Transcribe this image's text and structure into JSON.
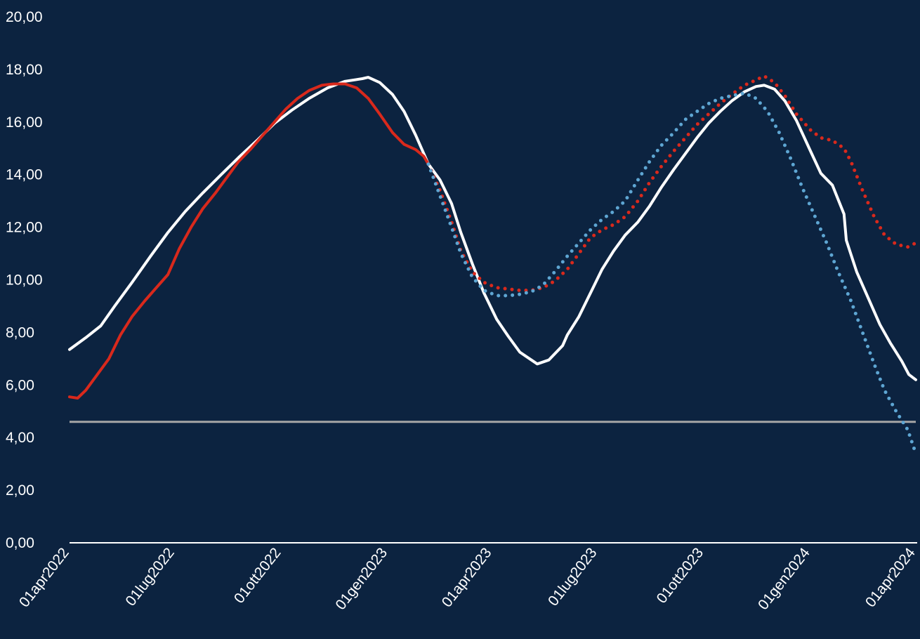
{
  "chart_data": {
    "type": "line",
    "title": "",
    "xlabel": "",
    "ylabel": "",
    "ylim": [
      0,
      20
    ],
    "y_ticks": [
      "0,00",
      "2,00",
      "4,00",
      "6,00",
      "8,00",
      "10,00",
      "12,00",
      "14,00",
      "16,00",
      "18,00",
      "20,00"
    ],
    "x_range": [
      "2022-04-01",
      "2024-04-01"
    ],
    "x_ticks": [
      {
        "date": "2022-04-01",
        "label": "01apr2022"
      },
      {
        "date": "2022-07-01",
        "label": "01lug2022"
      },
      {
        "date": "2022-10-01",
        "label": "01ott2022"
      },
      {
        "date": "2023-01-01",
        "label": "01gen2023"
      },
      {
        "date": "2023-04-01",
        "label": "01apr2023"
      },
      {
        "date": "2023-07-01",
        "label": "01lug2023"
      },
      {
        "date": "2023-10-01",
        "label": "01ott2023"
      },
      {
        "date": "2024-01-01",
        "label": "01gen2024"
      },
      {
        "date": "2024-04-01",
        "label": "01apr2024"
      }
    ],
    "grid": false,
    "legend": "none",
    "reference_line": {
      "y": 4.6,
      "color": "#a6a6a6"
    },
    "series": [
      {
        "color": "#ffffff",
        "style": "solid",
        "points": [
          [
            "2022-04-01",
            7.35
          ],
          [
            "2022-04-15",
            7.8
          ],
          [
            "2022-04-28",
            8.25
          ],
          [
            "2022-05-10",
            9.0
          ],
          [
            "2022-05-25",
            9.9
          ],
          [
            "2022-06-10",
            10.9
          ],
          [
            "2022-06-25",
            11.8
          ],
          [
            "2022-07-10",
            12.6
          ],
          [
            "2022-07-25",
            13.3
          ],
          [
            "2022-08-10",
            14.0
          ],
          [
            "2022-08-25",
            14.65
          ],
          [
            "2022-09-10",
            15.3
          ],
          [
            "2022-09-25",
            15.95
          ],
          [
            "2022-10-10",
            16.45
          ],
          [
            "2022-10-25",
            16.9
          ],
          [
            "2022-11-10",
            17.3
          ],
          [
            "2022-11-25",
            17.55
          ],
          [
            "2022-12-10",
            17.65
          ],
          [
            "2022-12-15",
            17.7
          ],
          [
            "2022-12-25",
            17.5
          ],
          [
            "2023-01-05",
            17.05
          ],
          [
            "2023-01-15",
            16.4
          ],
          [
            "2023-01-25",
            15.5
          ],
          [
            "2023-02-05",
            14.4
          ],
          [
            "2023-02-15",
            13.8
          ],
          [
            "2023-02-25",
            12.9
          ],
          [
            "2023-03-05",
            11.8
          ],
          [
            "2023-03-15",
            10.6
          ],
          [
            "2023-03-25",
            9.5
          ],
          [
            "2023-04-05",
            8.5
          ],
          [
            "2023-04-15",
            7.85
          ],
          [
            "2023-04-25",
            7.25
          ],
          [
            "2023-05-05",
            6.95
          ],
          [
            "2023-05-10",
            6.8
          ],
          [
            "2023-05-20",
            6.95
          ],
          [
            "2023-06-01",
            7.5
          ],
          [
            "2023-06-05",
            7.9
          ],
          [
            "2023-06-15",
            8.6
          ],
          [
            "2023-06-25",
            9.5
          ],
          [
            "2023-07-05",
            10.4
          ],
          [
            "2023-07-15",
            11.1
          ],
          [
            "2023-07-25",
            11.7
          ],
          [
            "2023-08-05",
            12.2
          ],
          [
            "2023-08-15",
            12.8
          ],
          [
            "2023-08-25",
            13.5
          ],
          [
            "2023-09-05",
            14.2
          ],
          [
            "2023-09-15",
            14.8
          ],
          [
            "2023-09-25",
            15.4
          ],
          [
            "2023-10-05",
            15.95
          ],
          [
            "2023-10-15",
            16.4
          ],
          [
            "2023-10-25",
            16.8
          ],
          [
            "2023-11-05",
            17.15
          ],
          [
            "2023-11-15",
            17.35
          ],
          [
            "2023-11-22",
            17.4
          ],
          [
            "2023-12-01",
            17.25
          ],
          [
            "2023-12-10",
            16.8
          ],
          [
            "2023-12-20",
            16.05
          ],
          [
            "2024-01-01",
            14.9
          ],
          [
            "2024-01-10",
            14.05
          ],
          [
            "2024-01-20",
            13.6
          ],
          [
            "2024-01-30",
            12.5
          ],
          [
            "2024-02-01",
            11.5
          ],
          [
            "2024-02-10",
            10.3
          ],
          [
            "2024-02-20",
            9.3
          ],
          [
            "2024-03-01",
            8.3
          ],
          [
            "2024-03-10",
            7.6
          ],
          [
            "2024-03-20",
            6.9
          ],
          [
            "2024-03-26",
            6.4
          ],
          [
            "2024-04-01",
            6.2
          ]
        ]
      },
      {
        "color": "#d9291c",
        "style": "solid",
        "points": [
          [
            "2022-04-01",
            5.55
          ],
          [
            "2022-04-08",
            5.5
          ],
          [
            "2022-04-15",
            5.8
          ],
          [
            "2022-04-25",
            6.4
          ],
          [
            "2022-05-05",
            7.0
          ],
          [
            "2022-05-15",
            7.9
          ],
          [
            "2022-05-25",
            8.6
          ],
          [
            "2022-06-05",
            9.2
          ],
          [
            "2022-06-15",
            9.7
          ],
          [
            "2022-06-25",
            10.2
          ],
          [
            "2022-07-05",
            11.2
          ],
          [
            "2022-07-15",
            12.0
          ],
          [
            "2022-07-25",
            12.7
          ],
          [
            "2022-08-05",
            13.3
          ],
          [
            "2022-08-15",
            13.9
          ],
          [
            "2022-08-25",
            14.5
          ],
          [
            "2022-09-05",
            15.0
          ],
          [
            "2022-09-15",
            15.5
          ],
          [
            "2022-09-25",
            16.0
          ],
          [
            "2022-10-05",
            16.5
          ],
          [
            "2022-10-15",
            16.9
          ],
          [
            "2022-10-25",
            17.2
          ],
          [
            "2022-11-05",
            17.4
          ],
          [
            "2022-11-15",
            17.45
          ],
          [
            "2022-11-25",
            17.45
          ],
          [
            "2022-12-05",
            17.3
          ],
          [
            "2022-12-15",
            16.9
          ],
          [
            "2022-12-25",
            16.3
          ],
          [
            "2023-01-05",
            15.6
          ],
          [
            "2023-01-15",
            15.15
          ],
          [
            "2023-01-25",
            14.95
          ],
          [
            "2023-02-01",
            14.7
          ],
          [
            "2023-02-05",
            14.4
          ]
        ]
      },
      {
        "color": "#d9291c",
        "style": "dotted",
        "points": [
          [
            "2023-02-05",
            14.4
          ],
          [
            "2023-02-15",
            13.4
          ],
          [
            "2023-02-25",
            12.2
          ],
          [
            "2023-03-05",
            11.1
          ],
          [
            "2023-03-15",
            10.3
          ],
          [
            "2023-03-25",
            9.9
          ],
          [
            "2023-04-05",
            9.7
          ],
          [
            "2023-04-15",
            9.65
          ],
          [
            "2023-04-25",
            9.6
          ],
          [
            "2023-05-05",
            9.6
          ],
          [
            "2023-05-15",
            9.7
          ],
          [
            "2023-05-25",
            9.95
          ],
          [
            "2023-06-05",
            10.4
          ],
          [
            "2023-06-15",
            11.0
          ],
          [
            "2023-06-25",
            11.6
          ],
          [
            "2023-07-05",
            11.9
          ],
          [
            "2023-07-15",
            12.1
          ],
          [
            "2023-07-25",
            12.4
          ],
          [
            "2023-08-05",
            13.0
          ],
          [
            "2023-08-15",
            13.7
          ],
          [
            "2023-08-25",
            14.3
          ],
          [
            "2023-09-05",
            14.9
          ],
          [
            "2023-09-15",
            15.4
          ],
          [
            "2023-09-25",
            15.9
          ],
          [
            "2023-10-05",
            16.3
          ],
          [
            "2023-10-15",
            16.7
          ],
          [
            "2023-10-25",
            17.05
          ],
          [
            "2023-11-05",
            17.4
          ],
          [
            "2023-11-15",
            17.6
          ],
          [
            "2023-11-22",
            17.75
          ],
          [
            "2023-12-01",
            17.5
          ],
          [
            "2023-12-10",
            17.0
          ],
          [
            "2023-12-20",
            16.3
          ],
          [
            "2024-01-01",
            15.7
          ],
          [
            "2024-01-10",
            15.4
          ],
          [
            "2024-01-20",
            15.3
          ],
          [
            "2024-01-30",
            15.0
          ],
          [
            "2024-02-05",
            14.5
          ],
          [
            "2024-02-15",
            13.4
          ],
          [
            "2024-02-25",
            12.4
          ],
          [
            "2024-03-05",
            11.7
          ],
          [
            "2024-03-15",
            11.35
          ],
          [
            "2024-03-25",
            11.25
          ],
          [
            "2024-04-01",
            11.4
          ]
        ]
      },
      {
        "color": "#5ea6d3",
        "style": "dotted",
        "points": [
          [
            "2023-02-05",
            14.4
          ],
          [
            "2023-02-15",
            13.2
          ],
          [
            "2023-02-25",
            12.0
          ],
          [
            "2023-03-05",
            11.0
          ],
          [
            "2023-03-15",
            10.1
          ],
          [
            "2023-03-25",
            9.6
          ],
          [
            "2023-04-05",
            9.4
          ],
          [
            "2023-04-15",
            9.4
          ],
          [
            "2023-04-25",
            9.45
          ],
          [
            "2023-05-05",
            9.55
          ],
          [
            "2023-05-15",
            9.8
          ],
          [
            "2023-05-25",
            10.3
          ],
          [
            "2023-06-05",
            10.9
          ],
          [
            "2023-06-15",
            11.4
          ],
          [
            "2023-06-25",
            11.9
          ],
          [
            "2023-07-05",
            12.3
          ],
          [
            "2023-07-15",
            12.6
          ],
          [
            "2023-07-25",
            13.0
          ],
          [
            "2023-08-05",
            13.8
          ],
          [
            "2023-08-15",
            14.5
          ],
          [
            "2023-08-25",
            15.1
          ],
          [
            "2023-09-05",
            15.6
          ],
          [
            "2023-09-15",
            16.1
          ],
          [
            "2023-09-25",
            16.4
          ],
          [
            "2023-10-05",
            16.7
          ],
          [
            "2023-10-15",
            16.9
          ],
          [
            "2023-10-25",
            17.0
          ],
          [
            "2023-11-05",
            17.1
          ],
          [
            "2023-11-15",
            16.9
          ],
          [
            "2023-11-25",
            16.4
          ],
          [
            "2023-12-05",
            15.6
          ],
          [
            "2023-12-15",
            14.6
          ],
          [
            "2023-12-25",
            13.5
          ],
          [
            "2024-01-05",
            12.4
          ],
          [
            "2024-01-15",
            11.4
          ],
          [
            "2024-01-25",
            10.3
          ],
          [
            "2024-02-05",
            9.2
          ],
          [
            "2024-02-15",
            8.0
          ],
          [
            "2024-02-25",
            6.8
          ],
          [
            "2024-03-05",
            5.8
          ],
          [
            "2024-03-15",
            5.0
          ],
          [
            "2024-03-25",
            4.3
          ],
          [
            "2024-04-01",
            3.4
          ]
        ]
      }
    ]
  }
}
